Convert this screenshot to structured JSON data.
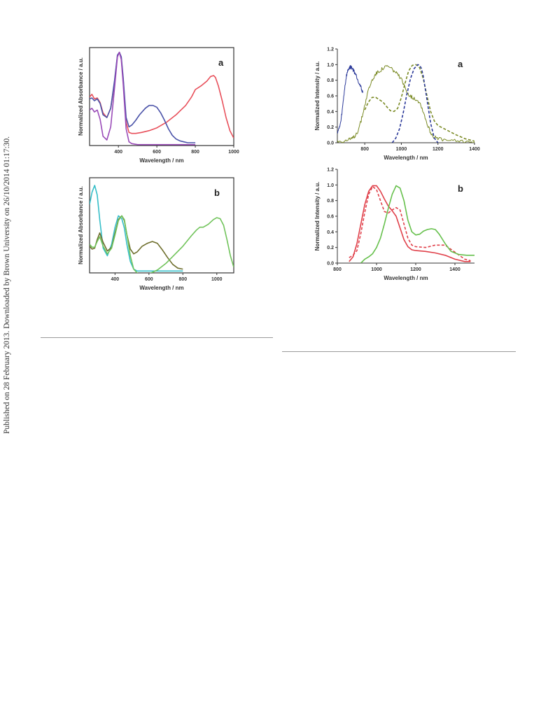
{
  "side_note": "Published on 28 February 2013. Downloaded by Brown University on 26/10/2014 01:17:30.",
  "chart_data": [
    {
      "id": "abs-a",
      "type": "line",
      "panel_label": "a",
      "xlabel": "Wavelength / nm",
      "ylabel": "Normalized Absorbance / a.u.",
      "xlim": [
        250,
        1000
      ],
      "ylim": [
        0,
        1.05
      ],
      "xticks": [
        400,
        600,
        800,
        1000
      ],
      "yticks": [],
      "legend": "none",
      "grid": false,
      "series": [
        {
          "color": "#e8505b",
          "style": "solid",
          "x": [
            250,
            262,
            275,
            290,
            305,
            320,
            340,
            360,
            380,
            395,
            405,
            415,
            425,
            440,
            455,
            470,
            490,
            520,
            560,
            600,
            650,
            700,
            750,
            780,
            800,
            830,
            860,
            880,
            895,
            905,
            920,
            940,
            960,
            980,
            1000
          ],
          "y": [
            0.52,
            0.55,
            0.5,
            0.51,
            0.46,
            0.35,
            0.3,
            0.4,
            0.68,
            0.96,
            1.0,
            0.93,
            0.7,
            0.25,
            0.14,
            0.13,
            0.13,
            0.14,
            0.16,
            0.19,
            0.25,
            0.33,
            0.43,
            0.52,
            0.6,
            0.64,
            0.69,
            0.74,
            0.75,
            0.73,
            0.64,
            0.48,
            0.3,
            0.16,
            0.08
          ]
        },
        {
          "color": "#4a52a8",
          "style": "solid",
          "x": [
            250,
            262,
            275,
            290,
            305,
            320,
            340,
            360,
            380,
            395,
            405,
            415,
            425,
            440,
            455,
            470,
            490,
            510,
            540,
            560,
            580,
            600,
            620,
            640,
            660,
            680,
            700,
            720,
            740,
            760,
            780,
            800
          ],
          "y": [
            0.5,
            0.51,
            0.48,
            0.5,
            0.45,
            0.33,
            0.3,
            0.4,
            0.7,
            0.97,
            1.0,
            0.95,
            0.72,
            0.3,
            0.2,
            0.22,
            0.27,
            0.33,
            0.4,
            0.43,
            0.43,
            0.41,
            0.35,
            0.27,
            0.18,
            0.11,
            0.07,
            0.05,
            0.04,
            0.03,
            0.03,
            0.03
          ]
        },
        {
          "color": "#9a4bb8",
          "style": "solid",
          "x": [
            250,
            262,
            275,
            290,
            305,
            320,
            340,
            360,
            380,
            395,
            405,
            415,
            425,
            440,
            455,
            470,
            500,
            550,
            600,
            650,
            700,
            750,
            800
          ],
          "y": [
            0.38,
            0.4,
            0.36,
            0.38,
            0.28,
            0.1,
            0.06,
            0.2,
            0.62,
            0.95,
            1.0,
            0.92,
            0.65,
            0.18,
            0.04,
            0.02,
            0.01,
            0.01,
            0.01,
            0.01,
            0.01,
            0.01,
            0.01
          ]
        }
      ]
    },
    {
      "id": "abs-b",
      "type": "line",
      "panel_label": "b",
      "xlabel": "Wavelength / nm",
      "ylabel": "Normalized Absorbance / a.u.",
      "xlim": [
        250,
        1100
      ],
      "ylim": [
        0,
        1.0
      ],
      "xticks": [
        400,
        600,
        800,
        1000
      ],
      "yticks": [],
      "legend": "none",
      "grid": false,
      "series": [
        {
          "color": "#36bec8",
          "style": "solid",
          "x": [
            250,
            265,
            280,
            295,
            310,
            330,
            355,
            380,
            400,
            420,
            440,
            455,
            470,
            490,
            510,
            530,
            560,
            600,
            650,
            700,
            750,
            800
          ],
          "y": [
            0.72,
            0.85,
            0.92,
            0.82,
            0.56,
            0.26,
            0.18,
            0.3,
            0.48,
            0.6,
            0.57,
            0.47,
            0.3,
            0.12,
            0.04,
            0.02,
            0.02,
            0.02,
            0.02,
            0.02,
            0.02,
            0.02
          ]
        },
        {
          "color": "#6e6e2c",
          "style": "solid",
          "x": [
            250,
            265,
            280,
            295,
            310,
            330,
            355,
            380,
            400,
            420,
            440,
            455,
            470,
            490,
            510,
            530,
            560,
            590,
            620,
            650,
            680,
            710,
            740,
            770,
            800
          ],
          "y": [
            0.28,
            0.25,
            0.26,
            0.35,
            0.42,
            0.32,
            0.23,
            0.27,
            0.42,
            0.56,
            0.6,
            0.55,
            0.4,
            0.25,
            0.2,
            0.22,
            0.28,
            0.31,
            0.33,
            0.31,
            0.24,
            0.16,
            0.09,
            0.05,
            0.04
          ]
        },
        {
          "color": "#70c35a",
          "style": "solid",
          "x": [
            250,
            265,
            280,
            295,
            310,
            330,
            355,
            380,
            400,
            420,
            440,
            455,
            470,
            490,
            510,
            530,
            550,
            570,
            600,
            650,
            700,
            750,
            800,
            850,
            880,
            900,
            920,
            950,
            980,
            1000,
            1020,
            1040,
            1060,
            1080,
            1100
          ],
          "y": [
            0.3,
            0.27,
            0.27,
            0.33,
            0.38,
            0.28,
            0.2,
            0.26,
            0.4,
            0.55,
            0.6,
            0.56,
            0.4,
            0.18,
            0.04,
            0.0,
            -0.02,
            -0.02,
            -0.01,
            0.03,
            0.1,
            0.19,
            0.28,
            0.39,
            0.45,
            0.48,
            0.48,
            0.51,
            0.56,
            0.58,
            0.57,
            0.5,
            0.35,
            0.18,
            0.06
          ]
        }
      ]
    },
    {
      "id": "emi-a",
      "type": "line",
      "panel_label": "a",
      "xlabel": "Wavelength / nm",
      "ylabel": "Normalized Intensity / a.u.",
      "xlim": [
        650,
        1400
      ],
      "ylim": [
        0,
        1.2
      ],
      "xticks": [
        800,
        1000,
        1200,
        1400
      ],
      "yticks": [
        0.0,
        0.2,
        0.4,
        0.6,
        0.8,
        1.0,
        1.2
      ],
      "legend": "none",
      "grid": false,
      "series": [
        {
          "color": "#2c3a9a",
          "style": "solid",
          "noise": true,
          "x": [
            650,
            660,
            670,
            680,
            690,
            700,
            710,
            720,
            730,
            740,
            750,
            760,
            770,
            780,
            790
          ],
          "y": [
            0.14,
            0.18,
            0.28,
            0.48,
            0.7,
            0.86,
            0.94,
            0.97,
            0.96,
            0.92,
            0.88,
            0.82,
            0.76,
            0.7,
            0.64
          ]
        },
        {
          "color": "#7a8a24",
          "style": "solid",
          "noise": true,
          "x": [
            650,
            680,
            700,
            720,
            740,
            760,
            780,
            800,
            820,
            840,
            860,
            880,
            900,
            920,
            940,
            960,
            980,
            1000,
            1020,
            1040,
            1060,
            1080,
            1100,
            1120,
            1140,
            1160,
            1180,
            1200,
            1250,
            1300,
            1350,
            1400
          ],
          "y": [
            0.02,
            0.02,
            0.03,
            0.04,
            0.07,
            0.14,
            0.28,
            0.48,
            0.68,
            0.8,
            0.88,
            0.92,
            0.95,
            0.98,
            0.96,
            0.92,
            0.87,
            0.81,
            0.7,
            0.62,
            0.58,
            0.56,
            0.52,
            0.4,
            0.25,
            0.13,
            0.07,
            0.05,
            0.03,
            0.02,
            0.02,
            0.01
          ]
        },
        {
          "color": "#7a8a24",
          "style": "dashed",
          "x": [
            800,
            820,
            840,
            860,
            880,
            900,
            920,
            940,
            960,
            980,
            1000,
            1020,
            1040,
            1060,
            1080,
            1100,
            1120,
            1140,
            1160,
            1180,
            1200,
            1250,
            1300,
            1350,
            1400
          ],
          "y": [
            0.42,
            0.52,
            0.58,
            0.58,
            0.55,
            0.52,
            0.46,
            0.41,
            0.4,
            0.44,
            0.58,
            0.76,
            0.92,
            0.99,
            1.0,
            0.96,
            0.82,
            0.6,
            0.4,
            0.28,
            0.22,
            0.16,
            0.1,
            0.05,
            0.02
          ]
        },
        {
          "color": "#2c3a9a",
          "style": "dashed",
          "x": [
            950,
            970,
            990,
            1010,
            1030,
            1050,
            1070,
            1090,
            1100,
            1110,
            1120,
            1140,
            1160,
            1180,
            1200
          ],
          "y": [
            0.0,
            0.06,
            0.18,
            0.38,
            0.62,
            0.82,
            0.95,
            1.0,
            0.99,
            0.95,
            0.85,
            0.55,
            0.25,
            0.06,
            0.0
          ]
        }
      ]
    },
    {
      "id": "emi-b",
      "type": "line",
      "panel_label": "b",
      "xlabel": "Wavelength / nm",
      "ylabel": "Normalized Intensity / a.u.",
      "xlim": [
        800,
        1500
      ],
      "ylim": [
        0,
        1.2
      ],
      "xticks": [
        800,
        1000,
        1200,
        1400
      ],
      "yticks": [
        0.0,
        0.2,
        0.4,
        0.6,
        0.8,
        1.0,
        1.2
      ],
      "legend": "none",
      "grid": false,
      "series": [
        {
          "color": "#e0404a",
          "style": "solid",
          "x": [
            860,
            880,
            900,
            920,
            940,
            960,
            980,
            1000,
            1020,
            1040,
            1060,
            1080,
            1100,
            1120,
            1140,
            1160,
            1180,
            1200,
            1250,
            1300,
            1350,
            1400,
            1450,
            1480
          ],
          "y": [
            0.02,
            0.08,
            0.25,
            0.5,
            0.75,
            0.92,
            0.99,
            0.99,
            0.92,
            0.82,
            0.73,
            0.67,
            0.6,
            0.45,
            0.3,
            0.21,
            0.17,
            0.16,
            0.15,
            0.13,
            0.1,
            0.05,
            0.02,
            0.02
          ]
        },
        {
          "color": "#e0404a",
          "style": "dashed",
          "x": [
            860,
            880,
            900,
            920,
            940,
            960,
            980,
            1000,
            1020,
            1040,
            1060,
            1080,
            1100,
            1120,
            1140,
            1160,
            1180,
            1200,
            1250,
            1300,
            1350,
            1400,
            1450,
            1480
          ],
          "y": [
            0.07,
            0.1,
            0.16,
            0.38,
            0.65,
            0.88,
            0.98,
            0.94,
            0.8,
            0.66,
            0.64,
            0.68,
            0.71,
            0.68,
            0.5,
            0.32,
            0.23,
            0.21,
            0.2,
            0.23,
            0.23,
            0.14,
            0.05,
            0.03
          ]
        },
        {
          "color": "#66c04c",
          "style": "solid",
          "x": [
            920,
            940,
            960,
            980,
            1000,
            1020,
            1040,
            1060,
            1080,
            1100,
            1120,
            1140,
            1160,
            1180,
            1200,
            1220,
            1240,
            1260,
            1280,
            1300,
            1320,
            1350,
            1380,
            1420,
            1460,
            1500
          ],
          "y": [
            0.0,
            0.05,
            0.08,
            0.12,
            0.2,
            0.32,
            0.5,
            0.7,
            0.88,
            0.99,
            0.96,
            0.8,
            0.55,
            0.4,
            0.36,
            0.37,
            0.41,
            0.43,
            0.44,
            0.43,
            0.37,
            0.25,
            0.15,
            0.11,
            0.1,
            0.1
          ]
        }
      ]
    }
  ]
}
